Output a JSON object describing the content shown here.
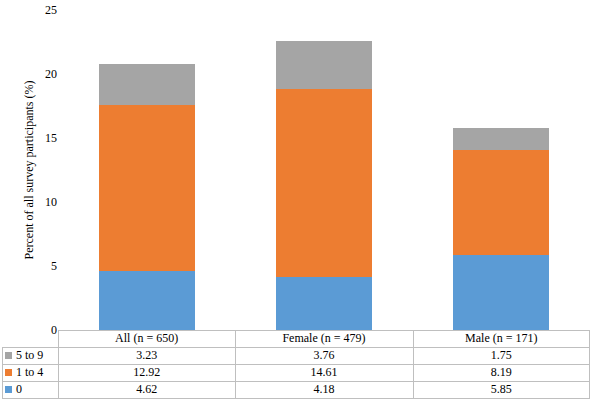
{
  "chart_data": {
    "type": "bar",
    "categories": [
      "All (n = 650)",
      "Female (n = 479)",
      "Male (n = 171)"
    ],
    "series": [
      {
        "name": "0",
        "color": "#5b9bd5",
        "values": [
          4.62,
          4.18,
          5.85
        ]
      },
      {
        "name": "1 to 4",
        "color": "#ed7d31",
        "values": [
          12.92,
          14.61,
          8.19
        ]
      },
      {
        "name": "5 to 9",
        "color": "#a5a5a5",
        "values": [
          3.23,
          3.76,
          1.75
        ]
      }
    ],
    "stacked": true,
    "y_label": "Percent of all survey participants (%)",
    "ylim": [
      0,
      25
    ],
    "yticks": [
      0,
      5,
      10,
      15,
      20,
      25
    ],
    "grid": false
  }
}
